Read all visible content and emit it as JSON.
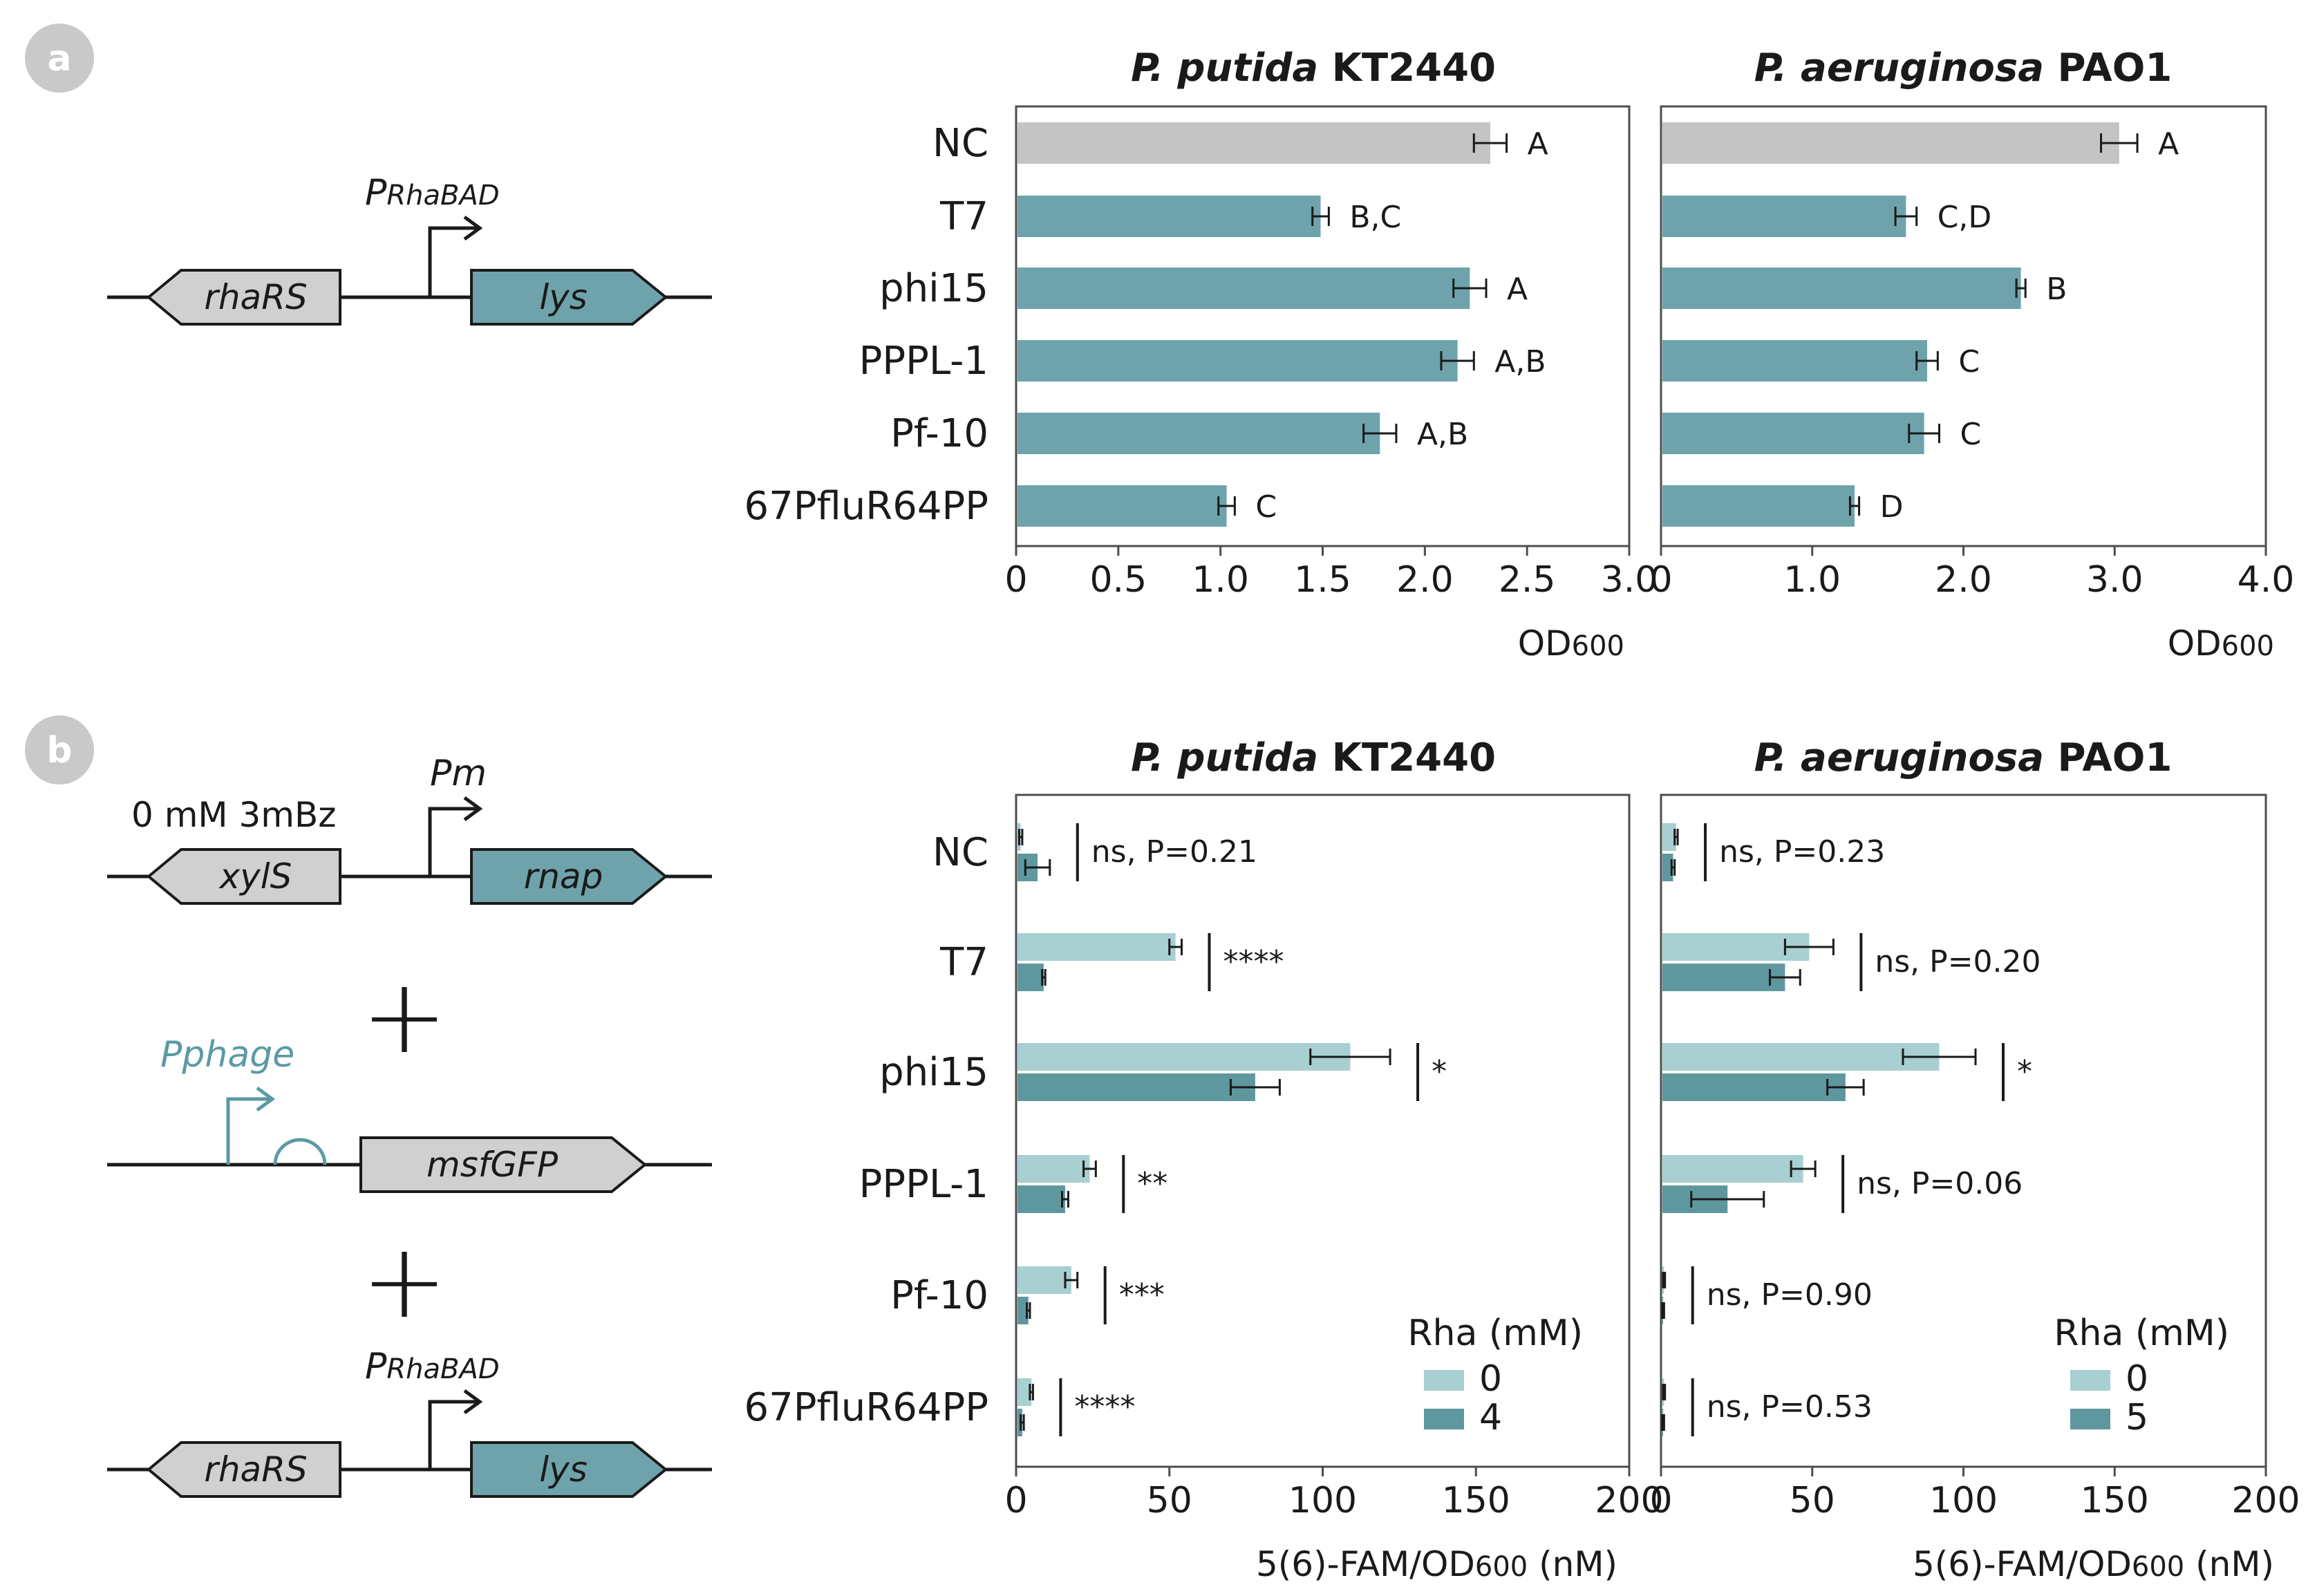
{
  "colors": {
    "nc_bar": "#c4c4c4",
    "teal": "#6fa3ac",
    "teal_dark": "#5f979f",
    "teal_light": "#a8cfd2",
    "badge": "#c9c9c9",
    "gene_fill": "#d0d0d0",
    "phage_promoter": "#5b9aa4",
    "axis": "#4d4d4d"
  },
  "panel_a": {
    "badge": "a",
    "construct": {
      "promoter": "P",
      "promoter_sub": "RhaBAD",
      "gene_left": "rhaRS",
      "gene_right": "lys"
    }
  },
  "panel_b": {
    "badge": "b",
    "construct1": {
      "condition": "0 mM 3mBz",
      "promoter": "Pm",
      "gene_left": "xylS",
      "gene_right": "rnap"
    },
    "construct2": {
      "promoter": "Pphage",
      "gene": "msfGFP"
    },
    "construct3": {
      "promoter": "P",
      "promoter_sub": "RhaBAD",
      "gene_left": "rhaRS",
      "gene_right": "lys"
    },
    "plus": "+"
  },
  "chart_data": [
    {
      "id": "a1",
      "type": "bar",
      "orientation": "horizontal",
      "title_italic": "P. putida",
      "title_rest": " KT2440",
      "xlabel": "OD",
      "xlabel_sub": "600",
      "xlim": [
        0,
        3.0
      ],
      "xticks": [
        0,
        0.5,
        1.0,
        1.5,
        2.0,
        2.5,
        3.0
      ],
      "xtick_labels": [
        "0",
        "0.5",
        "1.0",
        "1.5",
        "2.0",
        "2.5",
        "3.0"
      ],
      "categories": [
        "NC",
        "T7",
        "phi15",
        "PPPL-1",
        "Pf-10",
        "67PfluR64PP"
      ],
      "values": [
        2.32,
        1.49,
        2.22,
        2.16,
        1.78,
        1.03
      ],
      "errors": [
        0.08,
        0.04,
        0.08,
        0.08,
        0.08,
        0.04
      ],
      "letters": [
        "A",
        "B,C",
        "A",
        "A,B",
        "A,B",
        "C"
      ]
    },
    {
      "id": "a2",
      "type": "bar",
      "orientation": "horizontal",
      "title_italic": "P. aeruginosa",
      "title_rest": " PAO1",
      "xlabel": "OD",
      "xlabel_sub": "600",
      "xlim": [
        0,
        4.0
      ],
      "xticks": [
        0,
        1.0,
        2.0,
        3.0,
        4.0
      ],
      "xtick_labels": [
        "0",
        "1.0",
        "2.0",
        "3.0",
        "4.0"
      ],
      "categories": [
        "NC",
        "T7",
        "phi15",
        "PPPL-1",
        "Pf-10",
        "67PfluR64PP"
      ],
      "values": [
        3.03,
        1.62,
        2.38,
        1.76,
        1.74,
        1.28
      ],
      "errors": [
        0.12,
        0.07,
        0.03,
        0.07,
        0.1,
        0.03
      ],
      "letters": [
        "A",
        "C,D",
        "B",
        "C",
        "C",
        "D"
      ]
    },
    {
      "id": "b1",
      "type": "bar",
      "orientation": "horizontal",
      "grouped": true,
      "title_italic": "P. putida",
      "title_rest": " KT2440",
      "xlabel": "5(6)-FAM/OD",
      "xlabel_sub": "600",
      "xlabel_tail": " (nM)",
      "xlim": [
        0,
        200
      ],
      "xticks": [
        0,
        50,
        100,
        150,
        200
      ],
      "xtick_labels": [
        "0",
        "50",
        "100",
        "150",
        "200"
      ],
      "categories": [
        "NC",
        "T7",
        "phi15",
        "PPPL-1",
        "Pf-10",
        "67PfluR64PP"
      ],
      "legend_title": "Rha (mM)",
      "series": [
        {
          "name": "0",
          "values": [
            1.5,
            52,
            109,
            24,
            18,
            5
          ],
          "errors": [
            0.5,
            2,
            13,
            2,
            2,
            0.5
          ]
        },
        {
          "name": "4",
          "values": [
            7,
            9,
            78,
            16,
            4,
            2
          ],
          "errors": [
            4,
            0.5,
            8,
            1,
            0.5,
            0.5
          ]
        }
      ],
      "significance": [
        "ns, P=0.21",
        "****",
        "*",
        "**",
        "***",
        "****"
      ]
    },
    {
      "id": "b2",
      "type": "bar",
      "orientation": "horizontal",
      "grouped": true,
      "title_italic": "P. aeruginosa",
      "title_rest": " PAO1",
      "xlabel": "5(6)-FAM/OD",
      "xlabel_sub": "600",
      "xlabel_tail": " (nM)",
      "xlim": [
        0,
        200
      ],
      "xticks": [
        0,
        50,
        100,
        150,
        200
      ],
      "xtick_labels": [
        "0",
        "50",
        "100",
        "150",
        "200"
      ],
      "categories": [
        "NC",
        "T7",
        "phi15",
        "PPPL-1",
        "Pf-10",
        "67PfluR64PP"
      ],
      "legend_title": "Rha (mM)",
      "series": [
        {
          "name": "0",
          "values": [
            5,
            49,
            92,
            47,
            1,
            1
          ],
          "errors": [
            0.5,
            8,
            12,
            4,
            0.3,
            0.3
          ]
        },
        {
          "name": "5",
          "values": [
            4,
            41,
            61,
            22,
            0.7,
            0.7
          ],
          "errors": [
            0.5,
            5,
            6,
            12,
            0.3,
            0.3
          ]
        }
      ],
      "significance": [
        "ns, P=0.23",
        "ns, P=0.20",
        "*",
        "ns, P=0.06",
        "ns, P=0.90",
        "ns, P=0.53"
      ]
    }
  ]
}
